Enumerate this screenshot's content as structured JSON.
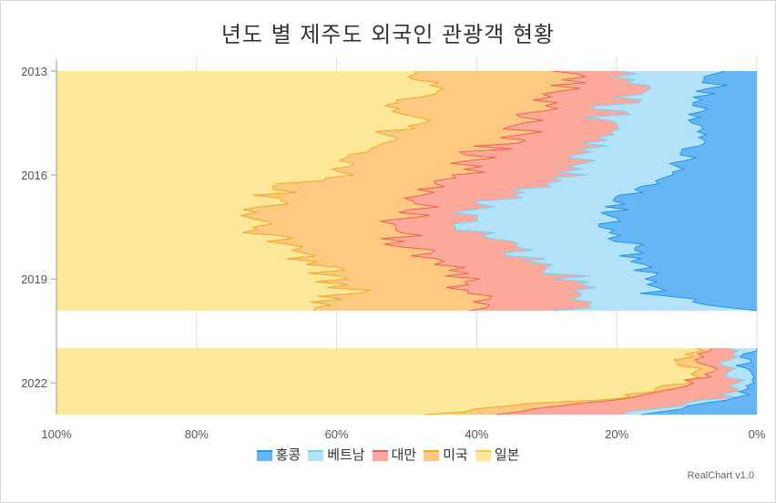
{
  "chart_data": {
    "type": "area",
    "title": "년도 별 제주도 외국인 관광객 현황",
    "stacking": "percent",
    "orientation": "horizontal-inverted",
    "y_ticks": [
      "2013",
      "2016",
      "2019",
      "2022"
    ],
    "x_ticks": [
      "100%",
      "80%",
      "60%",
      "40%",
      "20%",
      "0%"
    ],
    "series": [
      {
        "name": "홍콩",
        "color": "#66b6f5",
        "line": "#2196f3"
      },
      {
        "name": "베트남",
        "color": "#b3e2fb",
        "line": "#7fcef5"
      },
      {
        "name": "대만",
        "color": "#fca99b",
        "line": "#f0624d"
      },
      {
        "name": "미국",
        "color": "#fdc983",
        "line": "#f5a623"
      },
      {
        "name": "일본",
        "color": "#fde89a",
        "line": "#f7c843"
      }
    ],
    "segments": [
      {
        "from": "2013-01",
        "to": "2019-12"
      },
      {
        "from": "2021-01",
        "to": "2022-12"
      }
    ],
    "boundaries_pct": [
      {
        "date": "2013-01",
        "b": [
          6,
          19,
          26,
          48,
          55
        ]
      },
      {
        "date": "2013-06",
        "b": [
          6,
          18,
          27,
          48,
          58
        ]
      },
      {
        "date": "2014-01",
        "b": [
          8,
          20,
          30,
          50,
          60
        ]
      },
      {
        "date": "2014-06",
        "b": [
          8,
          22,
          32,
          50,
          60
        ]
      },
      {
        "date": "2015-01",
        "b": [
          9,
          22,
          35,
          52,
          62
        ]
      },
      {
        "date": "2015-06",
        "b": [
          10,
          24,
          40,
          58,
          67
        ]
      },
      {
        "date": "2016-01",
        "b": [
          12,
          27,
          42,
          60,
          80
        ]
      },
      {
        "date": "2016-06",
        "b": [
          17,
          33,
          47,
          68,
          82
        ]
      },
      {
        "date": "2017-01",
        "b": [
          20,
          40,
          48,
          70,
          81
        ]
      },
      {
        "date": "2017-06",
        "b": [
          22,
          42,
          52,
          72,
          80
        ]
      },
      {
        "date": "2018-01",
        "b": [
          18,
          36,
          50,
          68,
          80
        ]
      },
      {
        "date": "2018-06",
        "b": [
          18,
          32,
          46,
          64,
          78
        ]
      },
      {
        "date": "2019-01",
        "b": [
          14,
          26,
          42,
          60,
          76
        ]
      },
      {
        "date": "2019-06",
        "b": [
          15,
          24,
          40,
          58,
          72
        ]
      },
      {
        "date": "2019-12",
        "b": [
          0,
          27,
          41,
          66,
          78
        ]
      },
      {
        "date": "2021-01",
        "b": [
          0,
          3,
          5,
          7,
          92
        ]
      },
      {
        "date": "2021-06",
        "b": [
          2,
          4,
          8,
          10,
          90
        ]
      },
      {
        "date": "2022-01",
        "b": [
          1,
          3,
          8,
          10,
          93
        ]
      },
      {
        "date": "2022-06",
        "b": [
          2,
          4,
          18,
          20,
          91
        ]
      },
      {
        "date": "2022-12",
        "b": [
          16,
          20,
          38,
          48,
          94
        ]
      }
    ],
    "grid": true,
    "legend_position": "bottom"
  },
  "credit": "RealChart v1.0"
}
